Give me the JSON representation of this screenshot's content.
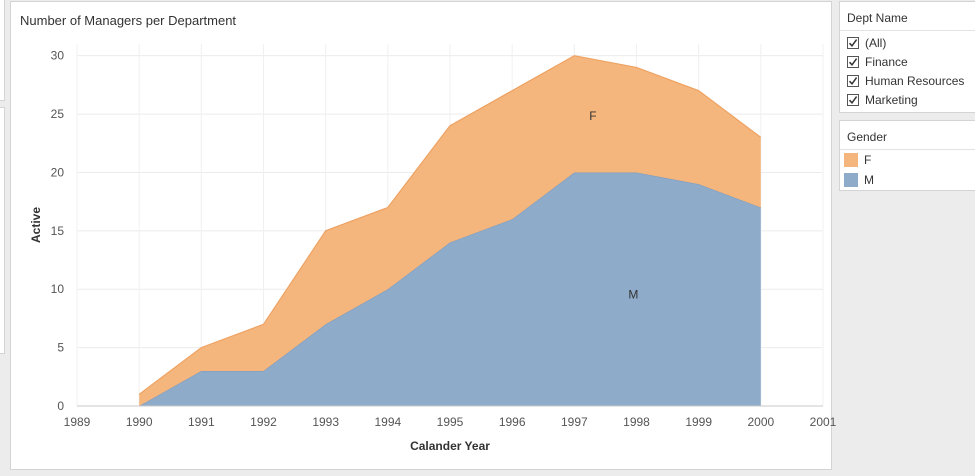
{
  "chart_title": "Number of Managers per Department",
  "chart_data": {
    "type": "area",
    "stacked": true,
    "x": [
      1990,
      1991,
      1992,
      1993,
      1994,
      1995,
      1996,
      1997,
      1998,
      1999,
      2000
    ],
    "series": [
      {
        "name": "M",
        "values": [
          0,
          3,
          3,
          7,
          10,
          14,
          16,
          20,
          20,
          19,
          17
        ],
        "color": "#8fabca"
      },
      {
        "name": "F",
        "values": [
          1,
          2,
          4,
          8,
          7,
          10,
          11,
          10,
          9,
          8,
          6
        ],
        "color": "#f4b67c"
      }
    ],
    "xlabel": "Calander Year",
    "ylabel": "Active",
    "xticks": [
      "1989",
      "1990",
      "1991",
      "1992",
      "1993",
      "1994",
      "1995",
      "1996",
      "1997",
      "1998",
      "1999",
      "2000",
      "2001"
    ],
    "yticks": [
      "0",
      "5",
      "10",
      "15",
      "20",
      "25",
      "30"
    ],
    "xlim": [
      1989,
      2001
    ],
    "ylim": [
      0,
      31
    ],
    "grid": true,
    "series_labels": [
      {
        "text": "F",
        "x": 1997.3,
        "y": 24.5
      },
      {
        "text": "M",
        "x": 1997.95,
        "y": 9.2
      }
    ]
  },
  "dept_filter": {
    "title": "Dept Name",
    "items": [
      {
        "label": "(All)",
        "checked": true
      },
      {
        "label": "Finance",
        "checked": true
      },
      {
        "label": "Human Resources",
        "checked": true
      },
      {
        "label": "Marketing",
        "checked": true
      }
    ]
  },
  "gender_legend": {
    "title": "Gender",
    "items": [
      {
        "label": "F",
        "color": "#f4b67c"
      },
      {
        "label": "M",
        "color": "#8fabca"
      }
    ]
  }
}
